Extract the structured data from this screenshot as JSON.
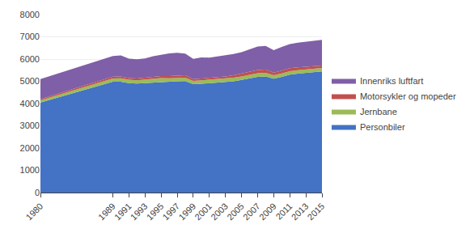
{
  "chart_data": {
    "type": "area",
    "stacked": true,
    "x": [
      1980,
      1989,
      1990,
      1991,
      1992,
      1993,
      1994,
      1995,
      1996,
      1997,
      1998,
      1999,
      2000,
      2001,
      2002,
      2003,
      2004,
      2005,
      2006,
      2007,
      2008,
      2009,
      2010,
      2011,
      2012,
      2013,
      2014,
      2015
    ],
    "series": [
      {
        "name": "Personbiler",
        "color": "#4472C4",
        "values": [
          4050,
          4980,
          4980,
          4920,
          4900,
          4920,
          4960,
          4980,
          4980,
          5000,
          5010,
          4870,
          4890,
          4920,
          4940,
          4960,
          5000,
          5060,
          5120,
          5200,
          5220,
          5120,
          5200,
          5300,
          5350,
          5380,
          5410,
          5450
        ]
      },
      {
        "name": "Jernbane",
        "color": "#9BBB59",
        "values": [
          100,
          150,
          155,
          150,
          150,
          155,
          160,
          165,
          160,
          165,
          155,
          150,
          155,
          155,
          155,
          155,
          160,
          160,
          165,
          165,
          160,
          155,
          155,
          155,
          150,
          150,
          150,
          150
        ]
      },
      {
        "name": "Motorsykler og mopeder",
        "color": "#C0504D",
        "values": [
          50,
          80,
          80,
          75,
          75,
          80,
          85,
          90,
          95,
          100,
          110,
          80,
          80,
          85,
          90,
          100,
          110,
          120,
          130,
          140,
          150,
          120,
          130,
          140,
          130,
          120,
          115,
          110
        ]
      },
      {
        "name": "Innenriks luftfart",
        "color": "#7F5FA7",
        "values": [
          900,
          930,
          950,
          870,
          870,
          875,
          920,
          960,
          1020,
          1020,
          975,
          910,
          950,
          905,
          925,
          955,
          955,
          965,
          1010,
          1060,
          1060,
          1005,
          1060,
          1080,
          1110,
          1130,
          1135,
          1150
        ]
      }
    ],
    "xlim": [
      1980,
      2015
    ],
    "xticks": [
      1980,
      1989,
      1991,
      1993,
      1995,
      1997,
      1999,
      2001,
      2003,
      2005,
      2007,
      2009,
      2011,
      2013,
      2015
    ],
    "ylim": [
      0,
      8000
    ],
    "yticks": [
      0,
      1000,
      2000,
      3000,
      4000,
      5000,
      6000,
      7000,
      8000
    ],
    "grid": true,
    "legend": "right"
  }
}
